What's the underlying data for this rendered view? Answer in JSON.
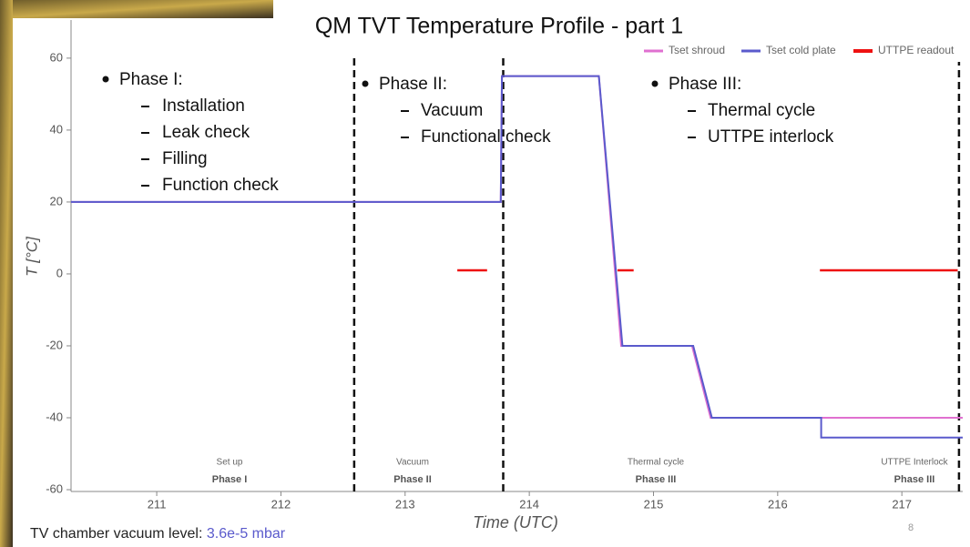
{
  "chart_data": {
    "type": "line",
    "title": "QM TVT Temperature Profile - part 1",
    "x_label": "Time (UTC)",
    "y_label": "T [°C]",
    "xlim": [
      210.31,
      217.49
    ],
    "ylim": [
      -60.5,
      70.6
    ],
    "xticks": [
      211,
      212,
      213,
      214,
      215,
      216,
      217
    ],
    "yticks": [
      -60,
      -40,
      -20,
      0,
      20,
      40,
      60
    ],
    "legend_position": "upper right",
    "series": [
      {
        "name": "Tset shroud",
        "color": "#e070d0",
        "x": [
          210.31,
          213.77,
          213.78,
          214.56,
          214.74,
          215.31,
          215.46,
          217.49
        ],
        "values": [
          20,
          20,
          55,
          55,
          -20,
          -20,
          -40,
          -40
        ]
      },
      {
        "name": "Tset cold plate",
        "color": "#5a5acc",
        "x": [
          210.31,
          213.77,
          213.78,
          214.56,
          214.75,
          215.32,
          215.47,
          216.35,
          216.35,
          217.49
        ],
        "values": [
          20,
          20,
          55,
          55,
          -20,
          -20,
          -40,
          -40,
          -45.5,
          -45.5
        ]
      },
      {
        "name": "UTTPE readout",
        "color": "#ee1111",
        "x": [
          213.42,
          213.66,
          null,
          214.71,
          214.84,
          null,
          216.34,
          217.45
        ],
        "values": [
          1,
          1,
          null,
          1,
          1,
          null,
          1,
          1
        ]
      }
    ],
    "phase_boundaries": [
      212.59,
      213.79,
      217.46
    ],
    "phase_labels": [
      {
        "name": "Set up",
        "phase": "Phase I"
      },
      {
        "name": "Vacuum",
        "phase": "Phase II"
      },
      {
        "name": "Thermal cycle",
        "phase": "Phase III"
      },
      {
        "name": "UTTPE Interlock",
        "phase": "Phase III"
      }
    ]
  },
  "slide": {
    "notes": [
      {
        "heading": "Phase I:",
        "items": [
          "Installation",
          "Leak check",
          "Filling",
          "Function check"
        ]
      },
      {
        "heading": "Phase II:",
        "items": [
          "Vacuum",
          "Functional check"
        ]
      },
      {
        "heading": "Phase III:",
        "items": [
          "Thermal cycle",
          "UTTPE interlock"
        ]
      }
    ],
    "footer_label": "TV chamber vacuum level:",
    "footer_value": "3.6e-5 mbar",
    "page_number": "8"
  }
}
